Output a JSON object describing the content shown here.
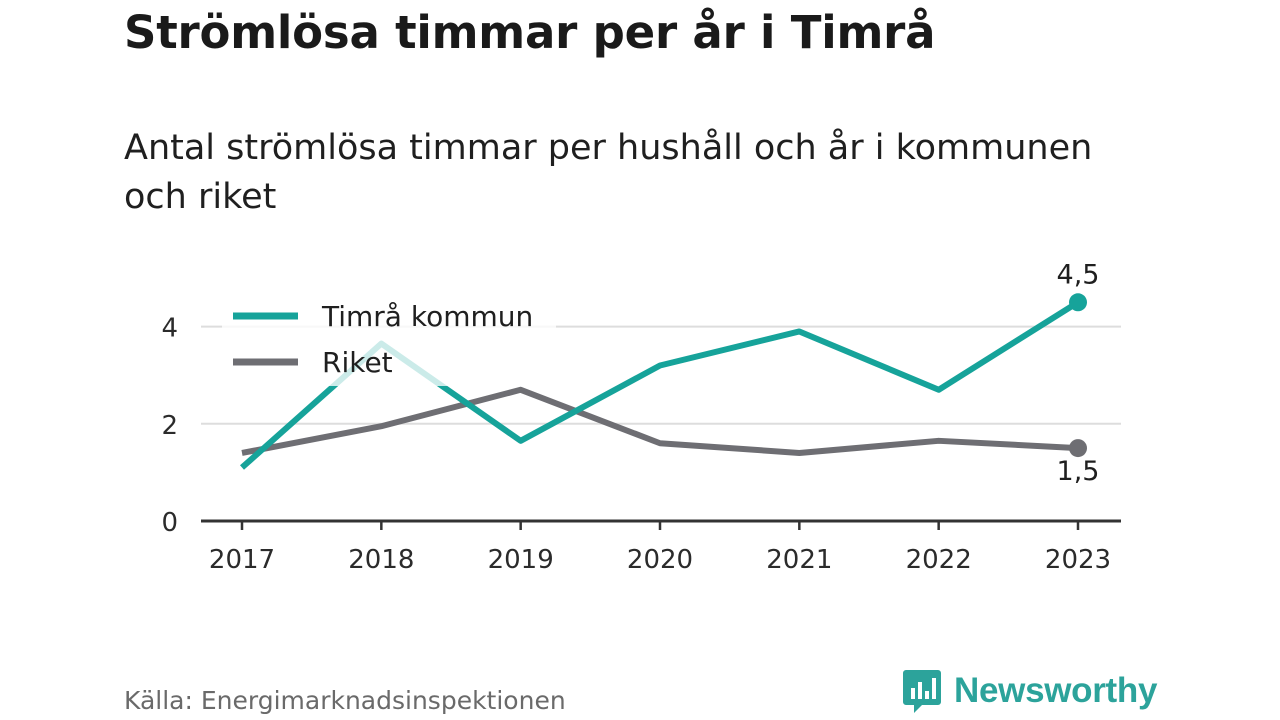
{
  "title": "Strömlösa timmar per år i Timrå",
  "subtitle": "Antal strömlösa timmar per hushåll och år i kommunen och riket",
  "source": "Källa: Energimarknadsinspektionen",
  "brand": "Newsworthy",
  "colors": {
    "timra": "#16a39a",
    "riket": "#6e6e73",
    "grid": "#dddddd",
    "axis": "#333333",
    "brand": "#2ca39b"
  },
  "chart_data": {
    "type": "line",
    "x": [
      "2017",
      "2018",
      "2019",
      "2020",
      "2021",
      "2022",
      "2023"
    ],
    "series": [
      {
        "name": "Timrå kommun",
        "values": [
          1.1,
          3.65,
          1.65,
          3.2,
          3.9,
          2.7,
          4.5
        ],
        "end_label": "4,5"
      },
      {
        "name": "Riket",
        "values": [
          1.4,
          1.95,
          2.7,
          1.6,
          1.4,
          1.65,
          1.5
        ],
        "end_label": "1,5"
      }
    ],
    "yticks": [
      0,
      2,
      4
    ],
    "ylim": [
      0,
      5
    ],
    "grid": true,
    "legend": "top-left"
  }
}
